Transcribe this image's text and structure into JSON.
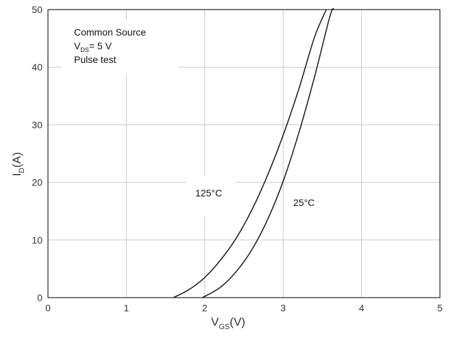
{
  "chart_data": {
    "type": "line",
    "xlabel": "V",
    "xlabel_sub": "GS",
    "xlabel_unit": "(V)",
    "ylabel": "I",
    "ylabel_sub": "D",
    "ylabel_unit": "(A)",
    "xlim": [
      0,
      5
    ],
    "ylim": [
      0,
      50
    ],
    "x_ticks": [
      "0",
      "1",
      "2",
      "3",
      "4",
      "5"
    ],
    "y_ticks": [
      "0",
      "10",
      "20",
      "30",
      "40",
      "50"
    ],
    "grid": true,
    "annotation": {
      "line1": "Common Source",
      "line2_main": "V",
      "line2_sub": "DS",
      "line2_rest": "= 5 V",
      "line3": "Pulse test"
    },
    "series": [
      {
        "name": "125°C",
        "x": [
          1.6,
          1.8,
          2.0,
          2.2,
          2.4,
          2.6,
          2.8,
          3.0,
          3.2,
          3.4,
          3.55
        ],
        "y": [
          0,
          1.4,
          3.5,
          6.5,
          10.3,
          15.2,
          21.2,
          28.2,
          36.2,
          45.2,
          50
        ]
      },
      {
        "name": "25°C",
        "x": [
          1.97,
          2.2,
          2.4,
          2.6,
          2.8,
          3.0,
          3.2,
          3.4,
          3.6,
          3.65
        ],
        "y": [
          0,
          1.8,
          4.5,
          8.3,
          13.5,
          20.2,
          28.6,
          38.3,
          49.0,
          50
        ]
      }
    ]
  }
}
